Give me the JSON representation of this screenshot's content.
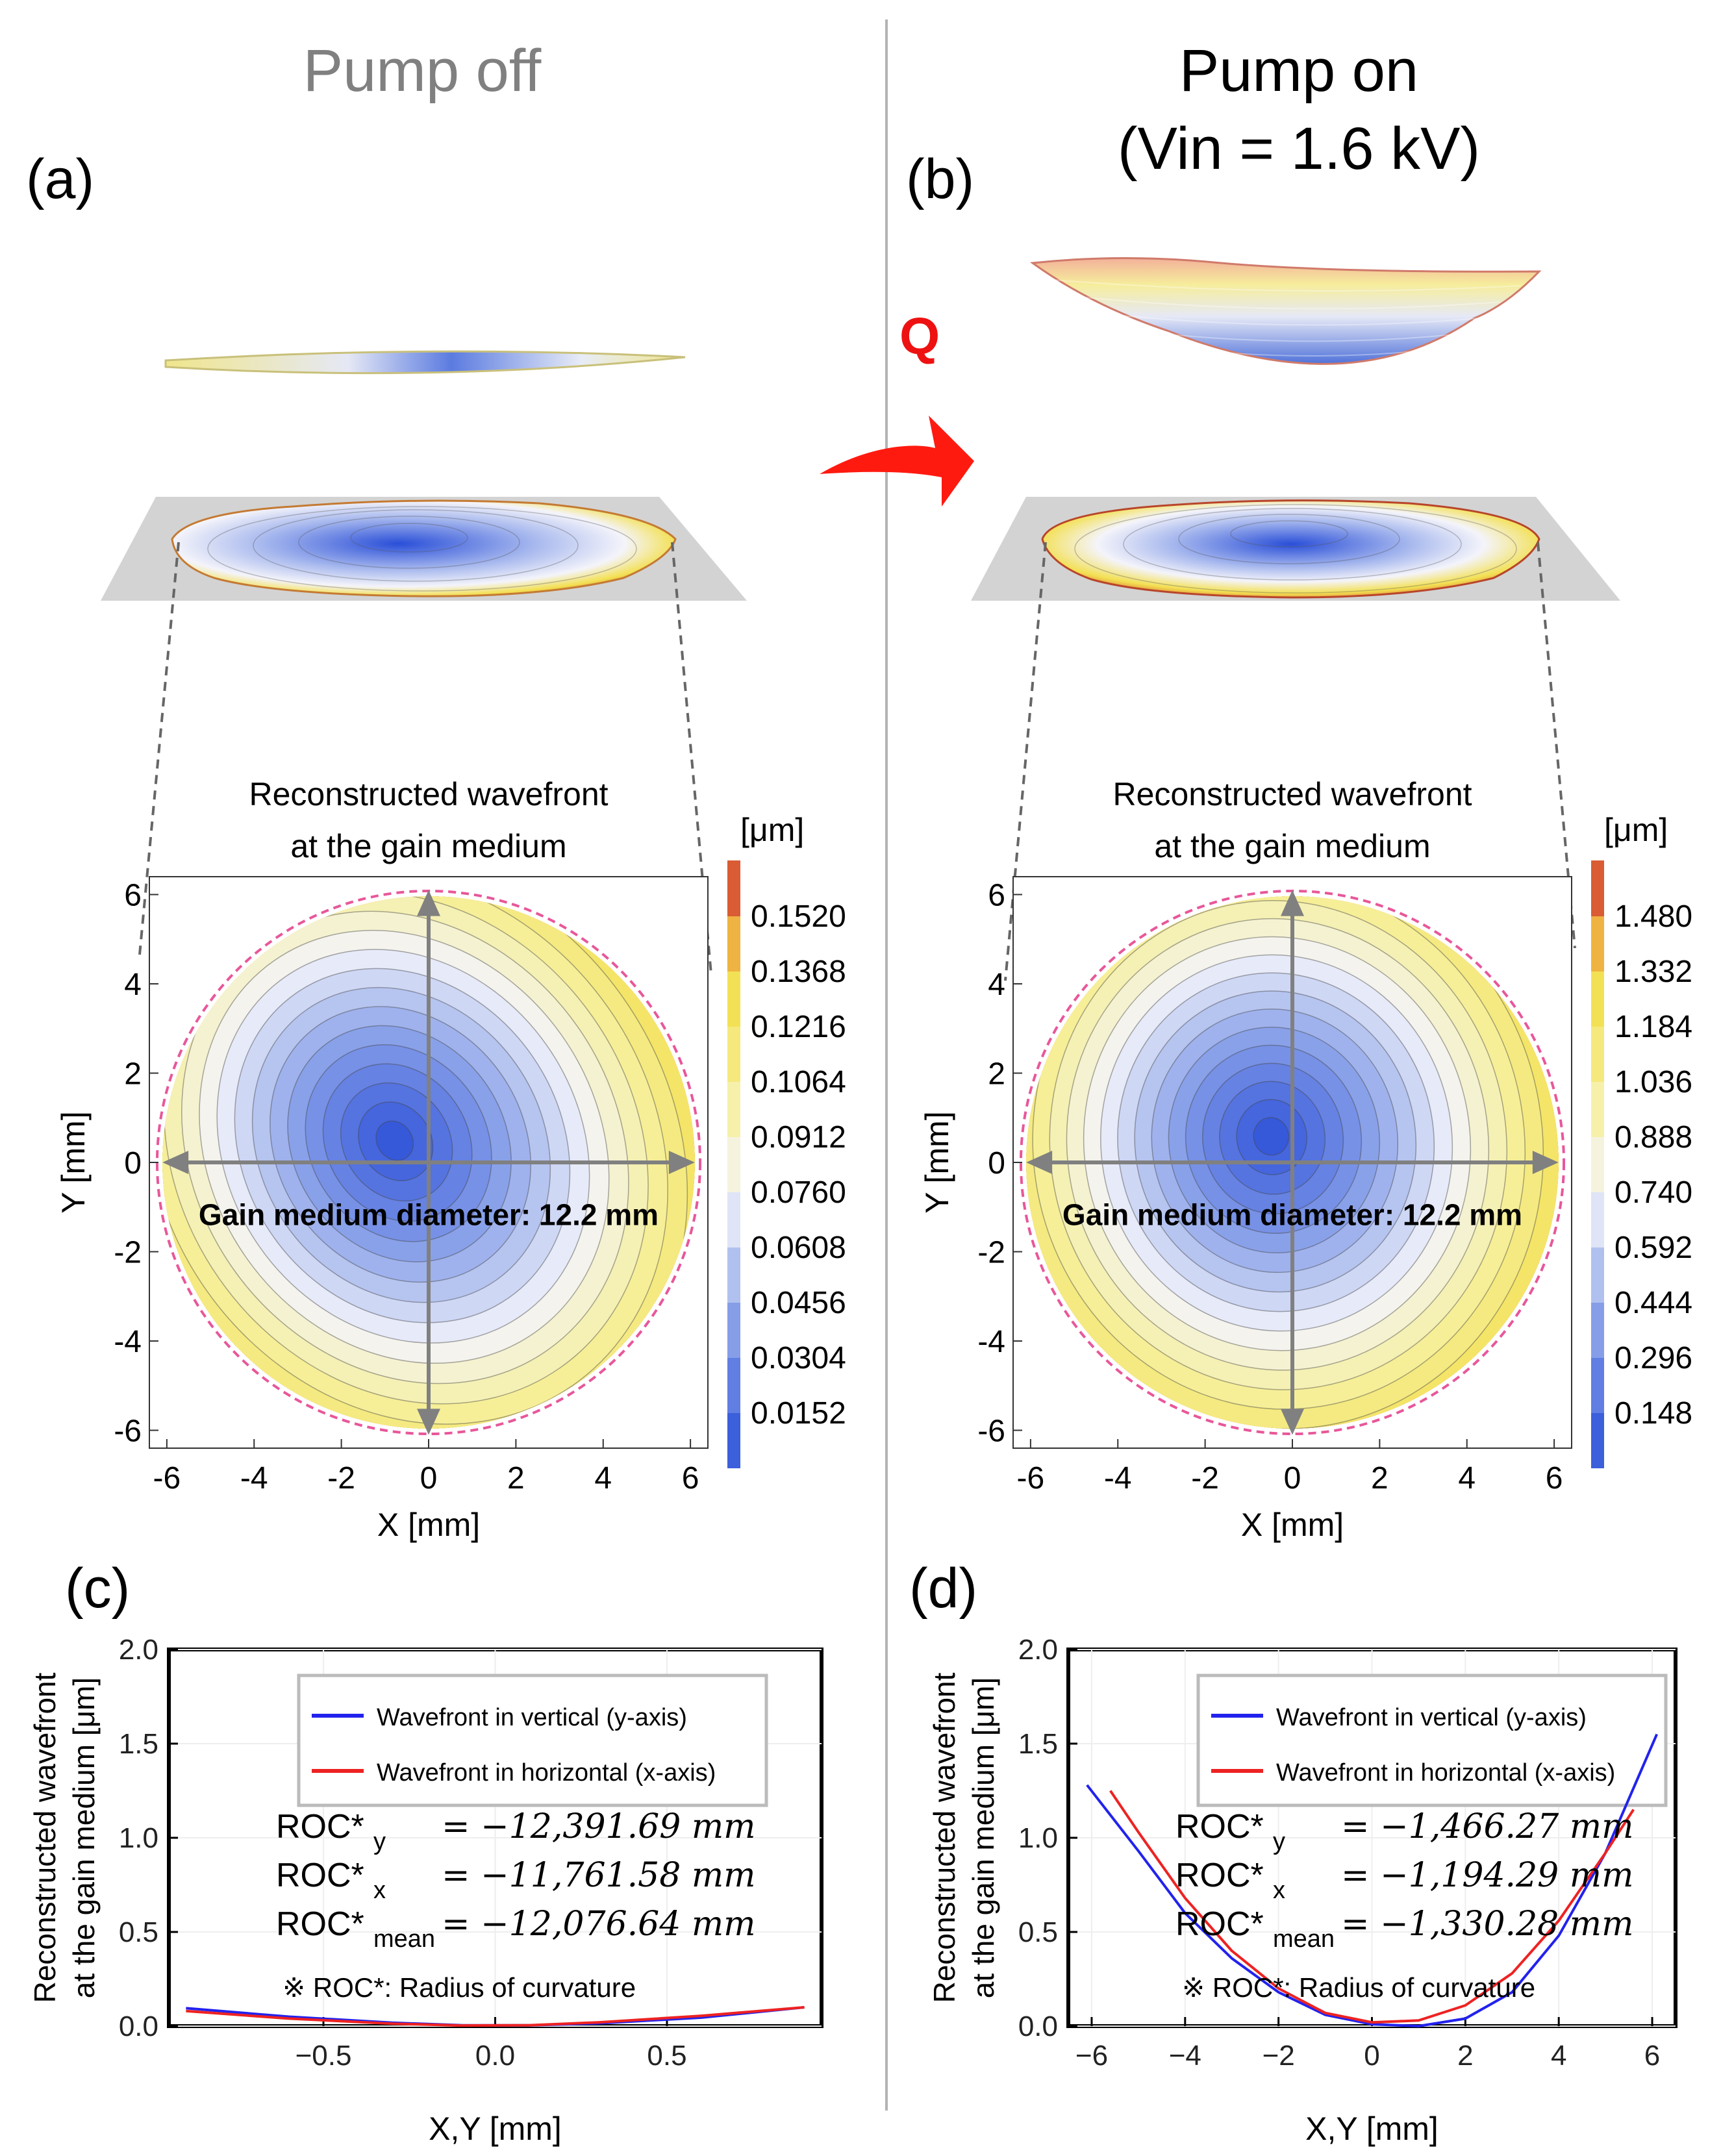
{
  "panels": {
    "left_header": "Pump off",
    "right_header_line1": "Pump on",
    "right_header_line2": "(Vin = 1.6 kV)",
    "label_a": "(a)",
    "label_b": "(b)",
    "label_c": "(c)",
    "label_d": "(d)",
    "q_label": "Q"
  },
  "colors": {
    "header_gray": "#808080",
    "q_red": "#ee1111",
    "contour_low": "#2a4fd8",
    "contour_mid": "#f4f4fa",
    "contour_yellow": "#f3e052",
    "contour_high": "#c9252e",
    "boundary_pink": "#e8579a",
    "arrow_gray": "#808080",
    "series_blue": "#2222ee",
    "series_red": "#ee2222"
  },
  "chart_data": [
    {
      "id": "a",
      "type": "contour",
      "title_line1": "Reconstructed wavefront",
      "title_line2": "at the gain medium",
      "xlabel": "X [mm]",
      "ylabel": "Y [mm]",
      "xlim": [
        -6.4,
        6.4
      ],
      "ylim": [
        -6.4,
        6.4
      ],
      "xticks": [
        "-6",
        "-4",
        "-2",
        "0",
        "2",
        "4",
        "6"
      ],
      "yticks": [
        "6",
        "4",
        "2",
        "0",
        "-2",
        "-4",
        "-6"
      ],
      "annotation": "Gain medium diameter: 12.2 mm",
      "colorbar_unit": "[μm]",
      "colorbar_ticks": [
        "0.1520",
        "0.1368",
        "0.1216",
        "0.1064",
        "0.0912",
        "0.0760",
        "0.0608",
        "0.0456",
        "0.0304",
        "0.0152"
      ],
      "colorbar_range": [
        0.0,
        0.1672
      ],
      "center": [
        -0.8,
        0.5
      ],
      "aperture_diameter_mm": 12.2
    },
    {
      "id": "b",
      "type": "contour",
      "title_line1": "Reconstructed wavefront",
      "title_line2": "at the gain medium",
      "xlabel": "X [mm]",
      "ylabel": "Y [mm]",
      "xlim": [
        -6.4,
        6.4
      ],
      "ylim": [
        -6.4,
        6.4
      ],
      "xticks": [
        "-6",
        "-4",
        "-2",
        "0",
        "2",
        "4",
        "6"
      ],
      "yticks": [
        "6",
        "4",
        "2",
        "0",
        "-2",
        "-4",
        "-6"
      ],
      "annotation": "Gain medium diameter: 12.2 mm",
      "colorbar_unit": "[μm]",
      "colorbar_ticks": [
        "1.480",
        "1.332",
        "1.184",
        "1.036",
        "0.888",
        "0.740",
        "0.592",
        "0.444",
        "0.296",
        "0.148"
      ],
      "colorbar_range": [
        0.0,
        1.628
      ],
      "center": [
        -0.5,
        0.6
      ],
      "aperture_diameter_mm": 12.2
    },
    {
      "id": "c",
      "type": "line",
      "xlabel": "X,Y [mm]",
      "ylabel_line1": "Reconstructed wavefront",
      "ylabel_line2": "at the gain medium [μm]",
      "xlim": [
        -0.95,
        0.95
      ],
      "ylim": [
        0,
        2.0
      ],
      "xticks": [
        -0.5,
        0.0,
        0.5
      ],
      "xtick_labels": [
        "−0.5",
        "0.0",
        "0.5"
      ],
      "yticks": [
        0,
        0.5,
        1.0,
        1.5,
        2.0
      ],
      "ytick_labels": [
        "0.0",
        "0.5",
        "1.0",
        "1.5",
        "2.0"
      ],
      "legend": [
        "Wavefront in vertical (y-axis)",
        "Wavefront in horizontal (x-axis)"
      ],
      "series": [
        {
          "name": "Wavefront in vertical (y-axis)",
          "color": "#2222ee",
          "x": [
            -0.9,
            -0.6,
            -0.3,
            -0.1,
            0.1,
            0.3,
            0.6,
            0.9
          ],
          "y": [
            0.095,
            0.05,
            0.018,
            0.005,
            0.004,
            0.015,
            0.045,
            0.1
          ]
        },
        {
          "name": "Wavefront in horizontal (x-axis)",
          "color": "#ee2222",
          "x": [
            -0.9,
            -0.6,
            -0.3,
            -0.1,
            0.1,
            0.3,
            0.6,
            0.9
          ],
          "y": [
            0.08,
            0.04,
            0.013,
            0.003,
            0.005,
            0.02,
            0.055,
            0.1
          ]
        }
      ],
      "roc_y_label": "ROC*",
      "roc_y_sub": "y",
      "roc_y_value": "= −12,391.69 mm",
      "roc_x_label": "ROC*",
      "roc_x_sub": "x",
      "roc_x_value": "= −11,761.58 mm",
      "roc_mean_label": "ROC*",
      "roc_mean_sub": "mean",
      "roc_mean_value": "= −12,076.64 mm",
      "note": "※ ROC*: Radius of curvature"
    },
    {
      "id": "d",
      "type": "line",
      "xlabel": "X,Y [mm]",
      "ylabel_line1": "Reconstructed wavefront",
      "ylabel_line2": "at the gain medium [μm]",
      "xlim": [
        -6.5,
        6.5
      ],
      "ylim": [
        0,
        2.0
      ],
      "xticks": [
        -6,
        -4,
        -2,
        0,
        2,
        4,
        6
      ],
      "xtick_labels": [
        "−6",
        "−4",
        "−2",
        "0",
        "2",
        "4",
        "6"
      ],
      "yticks": [
        0,
        0.5,
        1.0,
        1.5,
        2.0
      ],
      "ytick_labels": [
        "0.0",
        "0.5",
        "1.0",
        "1.5",
        "2.0"
      ],
      "legend": [
        "Wavefront in vertical (y-axis)",
        "Wavefront in horizontal (x-axis)"
      ],
      "series": [
        {
          "name": "Wavefront in vertical (y-axis)",
          "color": "#2222ee",
          "x": [
            -6.1,
            -5,
            -4,
            -3,
            -2,
            -1,
            0,
            1,
            2,
            3,
            4,
            5,
            6.1
          ],
          "y": [
            1.28,
            0.93,
            0.6,
            0.36,
            0.18,
            0.06,
            0.01,
            0.0,
            0.04,
            0.18,
            0.48,
            0.92,
            1.55
          ]
        },
        {
          "name": "Wavefront in horizontal (x-axis)",
          "color": "#ee2222",
          "x": [
            -5.6,
            -5,
            -4,
            -3,
            -2,
            -1,
            0,
            1,
            2,
            3,
            4,
            5,
            5.6
          ],
          "y": [
            1.25,
            1.03,
            0.68,
            0.4,
            0.2,
            0.07,
            0.02,
            0.03,
            0.11,
            0.28,
            0.56,
            0.92,
            1.15
          ]
        }
      ],
      "roc_y_label": "ROC*",
      "roc_y_sub": "y",
      "roc_y_value": "= −1,466.27 mm",
      "roc_x_label": "ROC*",
      "roc_x_sub": "x",
      "roc_x_value": "= −1,194.29 mm",
      "roc_mean_label": "ROC*",
      "roc_mean_sub": "mean",
      "roc_mean_value": "= −1,330.28 mm",
      "note": "※ ROC*: Radius of curvature"
    }
  ]
}
